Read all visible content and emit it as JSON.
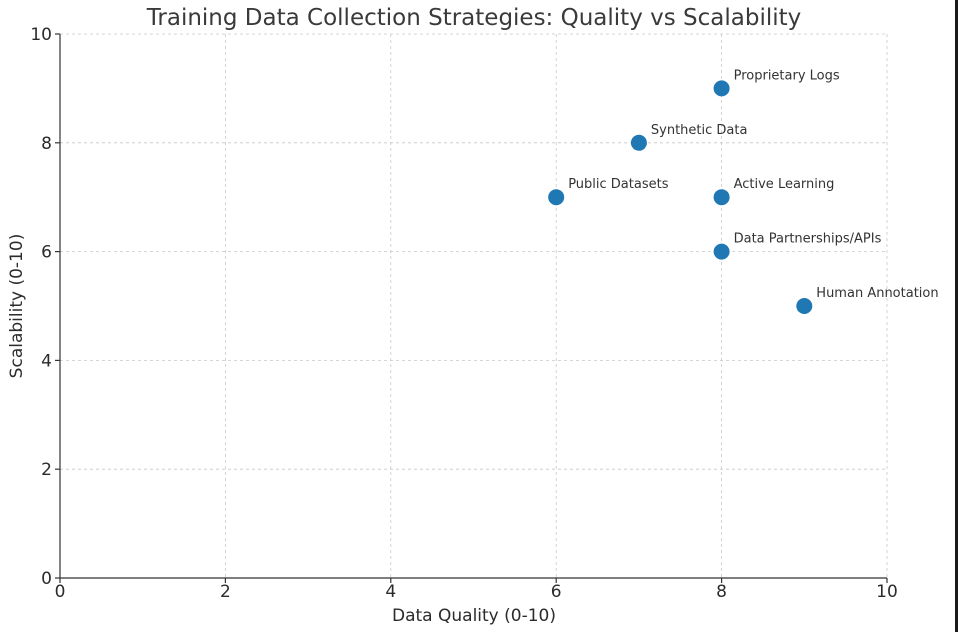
{
  "chart_data": {
    "type": "scatter",
    "title": "Training Data Collection Strategies: Quality vs Scalability",
    "xlabel": "Data Quality (0-10)",
    "ylabel": "Scalability (0-10)",
    "xlim": [
      0,
      10
    ],
    "ylim": [
      0,
      10
    ],
    "xticks": [
      0,
      2,
      4,
      6,
      8,
      10
    ],
    "yticks": [
      0,
      2,
      4,
      6,
      8,
      10
    ],
    "grid": true,
    "marker_color": "#1f77b4",
    "points": [
      {
        "label": "Public Datasets",
        "x": 6,
        "y": 7
      },
      {
        "label": "Synthetic Data",
        "x": 7,
        "y": 8
      },
      {
        "label": "Proprietary Logs",
        "x": 8,
        "y": 9
      },
      {
        "label": "Active Learning",
        "x": 8,
        "y": 7
      },
      {
        "label": "Data Partnerships/APIs",
        "x": 8,
        "y": 6
      },
      {
        "label": "Human Annotation",
        "x": 9,
        "y": 5
      }
    ]
  }
}
